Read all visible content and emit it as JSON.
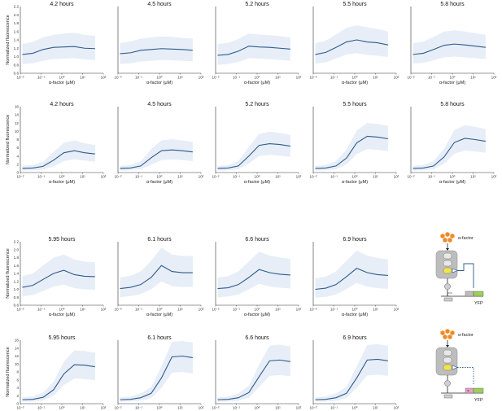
{
  "figure": {
    "xlabel": "α-factor (μM)",
    "ylabel": "Normalized fluorescence",
    "xticks": [
      "10⁻²",
      "10⁻¹",
      "10⁰",
      "10¹",
      "10²"
    ],
    "line_color": "#2f5b8c",
    "band_color": "#e7eef8"
  },
  "diagram": {
    "label_top": "α-factor",
    "label_bottom": "α-factor",
    "yfp_label": "YFP"
  },
  "chart_data": [
    {
      "type": "line",
      "title": "4.2 hours",
      "xscale": "log",
      "xlim": [
        0.01,
        100
      ],
      "ylim": [
        0.6,
        2.2
      ],
      "yticks": [
        0.6,
        0.8,
        1.0,
        1.2,
        1.4,
        1.6,
        1.8,
        2.0,
        2.2
      ],
      "x": [
        0.0125,
        0.04,
        0.125,
        0.4,
        1.25,
        4,
        12.5,
        40
      ],
      "y": [
        1.05,
        1.08,
        1.17,
        1.22,
        1.23,
        1.24,
        1.2,
        1.19
      ],
      "band_low": [
        0.82,
        0.84,
        0.9,
        0.94,
        0.95,
        0.96,
        0.93,
        0.92
      ],
      "band_high": [
        1.3,
        1.35,
        1.46,
        1.52,
        1.55,
        1.57,
        1.52,
        1.5
      ]
    },
    {
      "type": "line",
      "title": "4.5 hours",
      "xscale": "log",
      "xlim": [
        0.01,
        100
      ],
      "ylim": [
        0.6,
        2.2
      ],
      "yticks": [
        0.6,
        0.8,
        1.0,
        1.2,
        1.4,
        1.6,
        1.8,
        2.0,
        2.2
      ],
      "x": [
        0.0125,
        0.04,
        0.125,
        0.4,
        1.25,
        4,
        12.5,
        40
      ],
      "y": [
        1.07,
        1.09,
        1.15,
        1.17,
        1.19,
        1.18,
        1.17,
        1.15
      ],
      "band_low": [
        0.82,
        0.84,
        0.88,
        0.9,
        0.92,
        0.91,
        0.9,
        0.89
      ],
      "band_high": [
        1.33,
        1.36,
        1.43,
        1.46,
        1.48,
        1.47,
        1.45,
        1.43
      ]
    },
    {
      "type": "line",
      "title": "5.2 hours",
      "xscale": "log",
      "xlim": [
        0.01,
        100
      ],
      "ylim": [
        0.6,
        2.2
      ],
      "yticks": [
        0.6,
        0.8,
        1.0,
        1.2,
        1.4,
        1.6,
        1.8,
        2.0,
        2.2
      ],
      "x": [
        0.0125,
        0.04,
        0.125,
        0.4,
        1.25,
        4,
        12.5,
        40
      ],
      "y": [
        1.03,
        1.05,
        1.13,
        1.25,
        1.23,
        1.22,
        1.2,
        1.18
      ],
      "band_low": [
        0.8,
        0.82,
        0.87,
        0.96,
        0.95,
        0.94,
        0.92,
        0.9
      ],
      "band_high": [
        1.3,
        1.33,
        1.42,
        1.55,
        1.53,
        1.51,
        1.49,
        1.46
      ]
    },
    {
      "type": "line",
      "title": "5.5 hours",
      "xscale": "log",
      "xlim": [
        0.01,
        100
      ],
      "ylim": [
        0.6,
        2.2
      ],
      "yticks": [
        0.6,
        0.8,
        1.0,
        1.2,
        1.4,
        1.6,
        1.8,
        2.0,
        2.2
      ],
      "x": [
        0.0125,
        0.04,
        0.125,
        0.4,
        1.25,
        4,
        12.5,
        40
      ],
      "y": [
        1.05,
        1.1,
        1.22,
        1.35,
        1.4,
        1.35,
        1.33,
        1.28
      ],
      "band_low": [
        0.83,
        0.86,
        0.95,
        1.05,
        1.08,
        1.04,
        1.02,
        0.99
      ],
      "band_high": [
        1.32,
        1.38,
        1.53,
        1.69,
        1.75,
        1.7,
        1.66,
        1.6
      ]
    },
    {
      "type": "line",
      "title": "5.8 hours",
      "xscale": "log",
      "xlim": [
        0.01,
        100
      ],
      "ylim": [
        0.6,
        2.2
      ],
      "yticks": [
        0.6,
        0.8,
        1.0,
        1.2,
        1.4,
        1.6,
        1.8,
        2.0,
        2.2
      ],
      "x": [
        0.0125,
        0.04,
        0.125,
        0.4,
        1.25,
        4,
        12.5,
        40
      ],
      "y": [
        1.05,
        1.08,
        1.17,
        1.27,
        1.3,
        1.28,
        1.25,
        1.22
      ],
      "band_low": [
        0.83,
        0.85,
        0.91,
        0.98,
        1.0,
        0.98,
        0.96,
        0.94
      ],
      "band_high": [
        1.32,
        1.36,
        1.47,
        1.6,
        1.63,
        1.6,
        1.56,
        1.52
      ]
    },
    {
      "type": "line",
      "title": "4.2 hours",
      "xscale": "log",
      "xlim": [
        0.01,
        100
      ],
      "ylim": [
        0,
        16
      ],
      "yticks": [
        0,
        2,
        4,
        6,
        8,
        10,
        12,
        14,
        16
      ],
      "x": [
        0.0125,
        0.04,
        0.125,
        0.4,
        1.25,
        4,
        12.5,
        40
      ],
      "y": [
        1.0,
        1.1,
        1.5,
        3.0,
        4.8,
        5.3,
        4.8,
        4.5
      ],
      "band_low": [
        0.5,
        0.55,
        0.7,
        1.5,
        2.8,
        3.2,
        2.9,
        2.7
      ],
      "band_high": [
        1.6,
        1.8,
        2.6,
        5.0,
        7.2,
        7.8,
        7.1,
        6.7
      ]
    },
    {
      "type": "line",
      "title": "4.5 hours",
      "xscale": "log",
      "xlim": [
        0.01,
        100
      ],
      "ylim": [
        0,
        16
      ],
      "yticks": [
        0,
        2,
        4,
        6,
        8,
        10,
        12,
        14,
        16
      ],
      "x": [
        0.0125,
        0.04,
        0.125,
        0.4,
        1.25,
        4,
        12.5,
        40
      ],
      "y": [
        1.0,
        1.1,
        1.6,
        3.6,
        5.3,
        5.5,
        5.3,
        5.0
      ],
      "band_low": [
        0.5,
        0.55,
        0.8,
        1.9,
        3.0,
        3.2,
        3.0,
        2.8
      ],
      "band_high": [
        1.6,
        1.8,
        2.7,
        5.7,
        7.8,
        8.1,
        7.8,
        7.4
      ]
    },
    {
      "type": "line",
      "title": "5.2 hours",
      "xscale": "log",
      "xlim": [
        0.01,
        100
      ],
      "ylim": [
        0,
        16
      ],
      "yticks": [
        0,
        2,
        4,
        6,
        8,
        10,
        12,
        14,
        16
      ],
      "x": [
        0.0125,
        0.04,
        0.125,
        0.4,
        1.25,
        4,
        12.5,
        40
      ],
      "y": [
        1.0,
        1.1,
        1.6,
        4.0,
        6.6,
        7.0,
        6.8,
        6.4
      ],
      "band_low": [
        0.5,
        0.55,
        0.8,
        2.2,
        4.0,
        4.3,
        4.1,
        3.8
      ],
      "band_high": [
        1.6,
        1.8,
        2.8,
        6.2,
        9.4,
        9.9,
        9.6,
        9.1
      ]
    },
    {
      "type": "line",
      "title": "5.5 hours",
      "xscale": "log",
      "xlim": [
        0.01,
        100
      ],
      "ylim": [
        0,
        16
      ],
      "yticks": [
        0,
        2,
        4,
        6,
        8,
        10,
        12,
        14,
        16
      ],
      "x": [
        0.0125,
        0.04,
        0.125,
        0.4,
        1.25,
        4,
        12.5,
        40
      ],
      "y": [
        1.0,
        1.1,
        1.6,
        3.5,
        7.2,
        8.8,
        8.6,
        8.2
      ],
      "band_low": [
        0.5,
        0.55,
        0.8,
        2.0,
        4.5,
        5.7,
        5.5,
        5.2
      ],
      "band_high": [
        1.6,
        1.8,
        2.8,
        5.5,
        10.2,
        12.0,
        11.8,
        11.3
      ]
    },
    {
      "type": "line",
      "title": "5.8 hours",
      "xscale": "log",
      "xlim": [
        0.01,
        100
      ],
      "ylim": [
        0,
        16
      ],
      "yticks": [
        0,
        2,
        4,
        6,
        8,
        10,
        12,
        14,
        16
      ],
      "x": [
        0.0125,
        0.04,
        0.125,
        0.4,
        1.25,
        4,
        12.5,
        40
      ],
      "y": [
        1.0,
        1.1,
        1.6,
        3.8,
        7.3,
        8.3,
        8.0,
        7.6
      ],
      "band_low": [
        0.5,
        0.55,
        0.8,
        2.1,
        4.6,
        5.3,
        5.1,
        4.8
      ],
      "band_high": [
        1.6,
        1.8,
        2.8,
        5.8,
        10.3,
        11.5,
        11.1,
        10.6
      ]
    },
    {
      "type": "line",
      "title": "5.95 hours",
      "xscale": "log",
      "xlim": [
        0.01,
        100
      ],
      "ylim": [
        0.6,
        2.2
      ],
      "yticks": [
        0.6,
        0.8,
        1.0,
        1.2,
        1.4,
        1.6,
        1.8,
        2.0,
        2.2
      ],
      "x": [
        0.0125,
        0.04,
        0.125,
        0.4,
        1.25,
        4,
        12.5,
        40
      ],
      "y": [
        1.05,
        1.1,
        1.25,
        1.4,
        1.48,
        1.37,
        1.33,
        1.32
      ],
      "band_low": [
        0.82,
        0.86,
        0.96,
        1.07,
        1.12,
        1.03,
        1.0,
        0.99
      ],
      "band_high": [
        1.33,
        1.4,
        1.6,
        1.8,
        1.88,
        1.75,
        1.7,
        1.68
      ]
    },
    {
      "type": "line",
      "title": "6.1 hours",
      "xscale": "log",
      "xlim": [
        0.01,
        100
      ],
      "ylim": [
        0.6,
        2.2
      ],
      "yticks": [
        0.6,
        0.8,
        1.0,
        1.2,
        1.4,
        1.6,
        1.8,
        2.0,
        2.2
      ],
      "x": [
        0.0125,
        0.04,
        0.125,
        0.4,
        1.25,
        4,
        12.5,
        40
      ],
      "y": [
        1.02,
        1.05,
        1.12,
        1.3,
        1.6,
        1.45,
        1.42,
        1.42
      ],
      "band_low": [
        0.8,
        0.83,
        0.88,
        1.0,
        1.2,
        1.08,
        1.06,
        1.06
      ],
      "band_high": [
        1.3,
        1.34,
        1.45,
        1.72,
        2.05,
        1.88,
        1.84,
        1.84
      ]
    },
    {
      "type": "line",
      "title": "6.6 hours",
      "xscale": "log",
      "xlim": [
        0.01,
        100
      ],
      "ylim": [
        0.6,
        2.2
      ],
      "yticks": [
        0.6,
        0.8,
        1.0,
        1.2,
        1.4,
        1.6,
        1.8,
        2.0,
        2.2
      ],
      "x": [
        0.0125,
        0.04,
        0.125,
        0.4,
        1.25,
        4,
        12.5,
        40
      ],
      "y": [
        1.02,
        1.04,
        1.12,
        1.3,
        1.5,
        1.42,
        1.38,
        1.36
      ],
      "band_low": [
        0.8,
        0.82,
        0.87,
        1.0,
        1.14,
        1.07,
        1.04,
        1.02
      ],
      "band_high": [
        1.3,
        1.33,
        1.45,
        1.7,
        1.95,
        1.85,
        1.8,
        1.77
      ]
    },
    {
      "type": "line",
      "title": "6.9 hours",
      "xscale": "log",
      "xlim": [
        0.01,
        100
      ],
      "ylim": [
        0.6,
        2.2
      ],
      "yticks": [
        0.6,
        0.8,
        1.0,
        1.2,
        1.4,
        1.6,
        1.8,
        2.0,
        2.2
      ],
      "x": [
        0.0125,
        0.04,
        0.125,
        0.4,
        1.25,
        4,
        12.5,
        40
      ],
      "y": [
        1.0,
        1.03,
        1.12,
        1.32,
        1.53,
        1.42,
        1.37,
        1.35
      ],
      "band_low": [
        0.79,
        0.81,
        0.87,
        1.01,
        1.16,
        1.07,
        1.03,
        1.01
      ],
      "band_high": [
        1.28,
        1.32,
        1.45,
        1.72,
        1.98,
        1.85,
        1.79,
        1.76
      ]
    },
    {
      "type": "line",
      "title": "5.95 hours",
      "xscale": "log",
      "xlim": [
        0.01,
        100
      ],
      "ylim": [
        0,
        16
      ],
      "yticks": [
        0,
        2,
        4,
        6,
        8,
        10,
        12,
        14,
        16
      ],
      "x": [
        0.0125,
        0.04,
        0.125,
        0.4,
        1.25,
        4,
        12.5,
        40
      ],
      "y": [
        1.0,
        1.1,
        1.6,
        3.5,
        7.5,
        9.8,
        9.7,
        9.3
      ],
      "band_low": [
        0.5,
        0.55,
        0.8,
        2.0,
        4.7,
        6.3,
        6.2,
        5.9
      ],
      "band_high": [
        1.6,
        1.8,
        2.8,
        5.5,
        10.6,
        13.4,
        13.3,
        12.8
      ]
    },
    {
      "type": "line",
      "title": "6.1 hours",
      "xscale": "log",
      "xlim": [
        0.01,
        100
      ],
      "ylim": [
        0,
        16
      ],
      "yticks": [
        0,
        2,
        4,
        6,
        8,
        10,
        12,
        14,
        16
      ],
      "x": [
        0.0125,
        0.04,
        0.125,
        0.4,
        1.25,
        4,
        12.5,
        40
      ],
      "y": [
        1.0,
        1.1,
        1.5,
        2.6,
        6.5,
        11.8,
        12.0,
        11.6
      ],
      "band_low": [
        0.5,
        0.55,
        0.75,
        1.4,
        4.0,
        7.8,
        8.0,
        7.6
      ],
      "band_high": [
        1.6,
        1.8,
        2.6,
        4.2,
        9.4,
        15.6,
        15.8,
        15.4
      ]
    },
    {
      "type": "line",
      "title": "6.6 hours",
      "xscale": "log",
      "xlim": [
        0.01,
        100
      ],
      "ylim": [
        0,
        16
      ],
      "yticks": [
        0,
        2,
        4,
        6,
        8,
        10,
        12,
        14,
        16
      ],
      "x": [
        0.0125,
        0.04,
        0.125,
        0.4,
        1.25,
        4,
        12.5,
        40
      ],
      "y": [
        1.0,
        1.1,
        1.5,
        2.8,
        6.8,
        10.8,
        11.0,
        10.6
      ],
      "band_low": [
        0.5,
        0.55,
        0.75,
        1.5,
        4.2,
        7.0,
        7.2,
        6.9
      ],
      "band_high": [
        1.6,
        1.8,
        2.6,
        4.5,
        9.8,
        14.6,
        14.9,
        14.4
      ]
    },
    {
      "type": "line",
      "title": "6.9 hours",
      "xscale": "log",
      "xlim": [
        0.01,
        100
      ],
      "ylim": [
        0,
        16
      ],
      "yticks": [
        0,
        2,
        4,
        6,
        8,
        10,
        12,
        14,
        16
      ],
      "x": [
        0.0125,
        0.04,
        0.125,
        0.4,
        1.25,
        4,
        12.5,
        40
      ],
      "y": [
        1.0,
        1.1,
        1.5,
        2.6,
        6.5,
        11.0,
        11.2,
        10.8
      ],
      "band_low": [
        0.5,
        0.55,
        0.75,
        1.4,
        4.0,
        7.1,
        7.3,
        7.0
      ],
      "band_high": [
        1.6,
        1.8,
        2.6,
        4.2,
        9.4,
        14.8,
        15.0,
        14.6
      ]
    }
  ]
}
